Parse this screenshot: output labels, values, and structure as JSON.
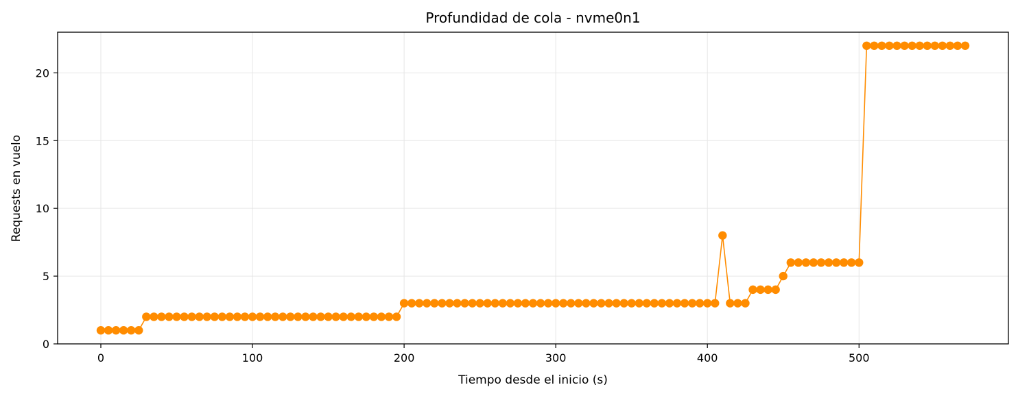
{
  "chart_data": {
    "type": "line",
    "title": "Profundidad de cola - nvme0n1",
    "xlabel": "Tiempo desde el inicio (s)",
    "ylabel": "Requests en vuelo",
    "xlim": [
      -28.5,
      598.5
    ],
    "ylim": [
      0,
      23
    ],
    "x_ticks": [
      0,
      100,
      200,
      300,
      400,
      500
    ],
    "y_ticks": [
      0,
      5,
      10,
      15,
      20
    ],
    "grid": true,
    "legend": "none",
    "color": "#ff8c00",
    "series": [
      {
        "x": [
          0,
          5,
          10,
          15,
          20,
          25,
          30,
          35,
          40,
          45,
          50,
          55,
          60,
          65,
          70,
          75,
          80,
          85,
          90,
          95,
          100,
          105,
          110,
          115,
          120,
          125,
          130,
          135,
          140,
          145,
          150,
          155,
          160,
          165,
          170,
          175,
          180,
          185,
          190,
          195,
          200,
          205,
          210,
          215,
          220,
          225,
          230,
          235,
          240,
          245,
          250,
          255,
          260,
          265,
          270,
          275,
          280,
          285,
          290,
          295,
          300,
          305,
          310,
          315,
          320,
          325,
          330,
          335,
          340,
          345,
          350,
          355,
          360,
          365,
          370,
          375,
          380,
          385,
          390,
          395,
          400,
          405,
          410,
          415,
          420,
          425,
          430,
          435,
          440,
          445,
          450,
          455,
          460,
          465,
          470,
          475,
          480,
          485,
          490,
          495,
          500,
          505,
          510,
          515,
          520,
          525,
          530,
          535,
          540,
          545,
          550,
          555,
          560,
          565,
          570
        ],
        "values": [
          1,
          1,
          1,
          1,
          1,
          1,
          2,
          2,
          2,
          2,
          2,
          2,
          2,
          2,
          2,
          2,
          2,
          2,
          2,
          2,
          2,
          2,
          2,
          2,
          2,
          2,
          2,
          2,
          2,
          2,
          2,
          2,
          2,
          2,
          2,
          2,
          2,
          2,
          2,
          2,
          3,
          3,
          3,
          3,
          3,
          3,
          3,
          3,
          3,
          3,
          3,
          3,
          3,
          3,
          3,
          3,
          3,
          3,
          3,
          3,
          3,
          3,
          3,
          3,
          3,
          3,
          3,
          3,
          3,
          3,
          3,
          3,
          3,
          3,
          3,
          3,
          3,
          3,
          3,
          3,
          3,
          3,
          8,
          3,
          3,
          3,
          4,
          4,
          4,
          4,
          5,
          6,
          6,
          6,
          6,
          6,
          6,
          6,
          6,
          6,
          6,
          22,
          22,
          22,
          22,
          22,
          22,
          22,
          22,
          22,
          22,
          22,
          22,
          22,
          22
        ]
      }
    ]
  }
}
